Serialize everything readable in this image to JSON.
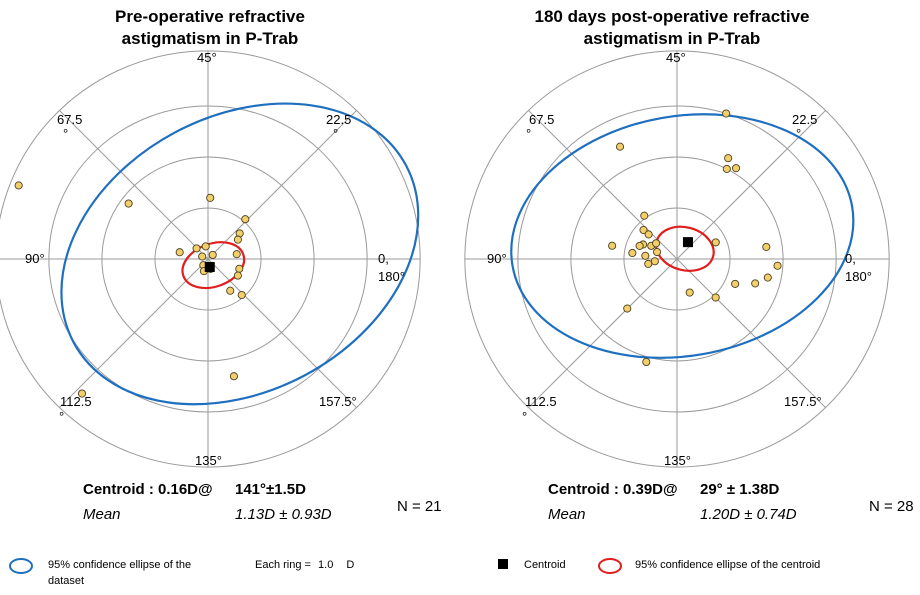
{
  "chart_data": [
    {
      "type": "scatter",
      "subtype": "double-angle polar astigmatism plot",
      "title": [
        "Pre-operative refractive",
        "astigmatism in P-Trab"
      ],
      "axis_labels": {
        "a0": "0,",
        "a0b": "180°",
        "a22": "22.5",
        "a45": "45°",
        "a67": "67.5",
        "a90": "90°",
        "a112": "112.5",
        "a135": "135°",
        "a157": "157.5°"
      },
      "ring_step_D": 1.0,
      "rings": 4,
      "points": [
        {
          "mag": 3.85,
          "axis": 79
        },
        {
          "mag": 1.85,
          "axis": 72
        },
        {
          "mag": 1.2,
          "axis": 44
        },
        {
          "mag": 1.05,
          "axis": 24
        },
        {
          "mag": 0.78,
          "axis": 20
        },
        {
          "mag": 0.68,
          "axis": 17
        },
        {
          "mag": 0.55,
          "axis": 5
        },
        {
          "mag": 0.55,
          "axis": 83
        },
        {
          "mag": 0.3,
          "axis": 68
        },
        {
          "mag": 0.25,
          "axis": 50
        },
        {
          "mag": 0.12,
          "axis": 21
        },
        {
          "mag": 0.12,
          "axis": 78
        },
        {
          "mag": 0.15,
          "axis": 117
        },
        {
          "mag": 0.2,
          "axis": 142
        },
        {
          "mag": 0.25,
          "axis": 126
        },
        {
          "mag": 0.62,
          "axis": 171
        },
        {
          "mag": 0.65,
          "axis": 165
        },
        {
          "mag": 0.75,
          "axis": 152
        },
        {
          "mag": 0.95,
          "axis": 156
        },
        {
          "mag": 2.35,
          "axis": 141
        },
        {
          "mag": 3.55,
          "axis": 114
        }
      ],
      "centroid": {
        "mag": 0.16,
        "axis": 141
      },
      "ellipse_centroid": {
        "cx": 0.1,
        "cy": -0.12,
        "rx": 0.6,
        "ry": 0.42,
        "rot": -20
      },
      "ellipse_dataset": {
        "cx": 0.6,
        "cy": 0.1,
        "rx": 3.55,
        "ry": 2.7,
        "rot": -28
      },
      "colors": {
        "point_fill": "#f2cf6b",
        "point_stroke": "#4d4020",
        "grid": "#9a9a9a",
        "dataset_ellipse": "#1f6fc0",
        "centroid_ellipse": "#e01e1e",
        "centroid": "#000000"
      }
    },
    {
      "type": "scatter",
      "subtype": "double-angle polar astigmatism plot",
      "title": [
        "180 days post-operative refractive",
        "astigmatism in P-Trab"
      ],
      "axis_labels": {
        "a0": "0,",
        "a0b": "180°",
        "a22": "22.5",
        "a45": "45°",
        "a67": "67.5",
        "a90": "90°",
        "a112": "112.5",
        "a135": "135°",
        "a157": "157.5°"
      },
      "ring_step_D": 1.0,
      "rings": 4,
      "points": [
        {
          "mag": 3.0,
          "axis": 36
        },
        {
          "mag": 2.45,
          "axis": 58
        },
        {
          "mag": 2.2,
          "axis": 32
        },
        {
          "mag": 2.1,
          "axis": 29
        },
        {
          "mag": 2.0,
          "axis": 31
        },
        {
          "mag": 1.05,
          "axis": 63
        },
        {
          "mag": 0.85,
          "axis": 69
        },
        {
          "mag": 0.72,
          "axis": 69
        },
        {
          "mag": 0.7,
          "axis": 78
        },
        {
          "mag": 1.25,
          "axis": 84
        },
        {
          "mag": 0.85,
          "axis": 86
        },
        {
          "mag": 0.55,
          "axis": 76
        },
        {
          "mag": 0.5,
          "axis": 71
        },
        {
          "mag": 0.6,
          "axis": 87
        },
        {
          "mag": 0.4,
          "axis": 80
        },
        {
          "mag": 0.42,
          "axis": 93
        },
        {
          "mag": 0.55,
          "axis": 95
        },
        {
          "mag": 0.75,
          "axis": 80
        },
        {
          "mag": 0.8,
          "axis": 12
        },
        {
          "mag": 1.7,
          "axis": 4
        },
        {
          "mag": 1.9,
          "axis": 178
        },
        {
          "mag": 1.75,
          "axis": 174
        },
        {
          "mag": 1.55,
          "axis": 171
        },
        {
          "mag": 1.2,
          "axis": 168
        },
        {
          "mag": 1.05,
          "axis": 157
        },
        {
          "mag": 0.7,
          "axis": 145
        },
        {
          "mag": 1.35,
          "axis": 113
        },
        {
          "mag": 2.1,
          "axis": 127
        }
      ],
      "centroid": {
        "mag": 0.39,
        "axis": 29
      },
      "ellipse_centroid": {
        "cx": 0.15,
        "cy": 0.2,
        "rx": 0.55,
        "ry": 0.42,
        "rot": 15
      },
      "ellipse_dataset": {
        "cx": 0.1,
        "cy": 0.45,
        "rx": 3.25,
        "ry": 2.35,
        "rot": -10
      },
      "colors": {
        "point_fill": "#f2cf6b",
        "point_stroke": "#4d4020",
        "grid": "#9a9a9a",
        "dataset_ellipse": "#1f6fc0",
        "centroid_ellipse": "#e01e1e",
        "centroid": "#000000"
      }
    }
  ],
  "stats": [
    {
      "centroid_label": "Centroid : 0.16D@",
      "centroid_value": "141°±1.5D",
      "mean_label": "Mean",
      "mean_value": "1.13D ± 0.93D",
      "n": "N = 21"
    },
    {
      "centroid_label": "Centroid : 0.39D@",
      "centroid_value": "29°  ±  1.38D",
      "mean_label": "Mean",
      "mean_value": "1.20D ± 0.74D",
      "n": "N = 28"
    }
  ],
  "legend": {
    "dataset_ellipse": "95% confidence ellipse of the",
    "dataset_ellipse_2": "dataset",
    "ring_prefix": "Each ring =",
    "ring_value": "1.0",
    "ring_unit": "D",
    "centroid": "Centroid",
    "centroid_ellipse": "95% confidence ellipse of  the centroid"
  }
}
